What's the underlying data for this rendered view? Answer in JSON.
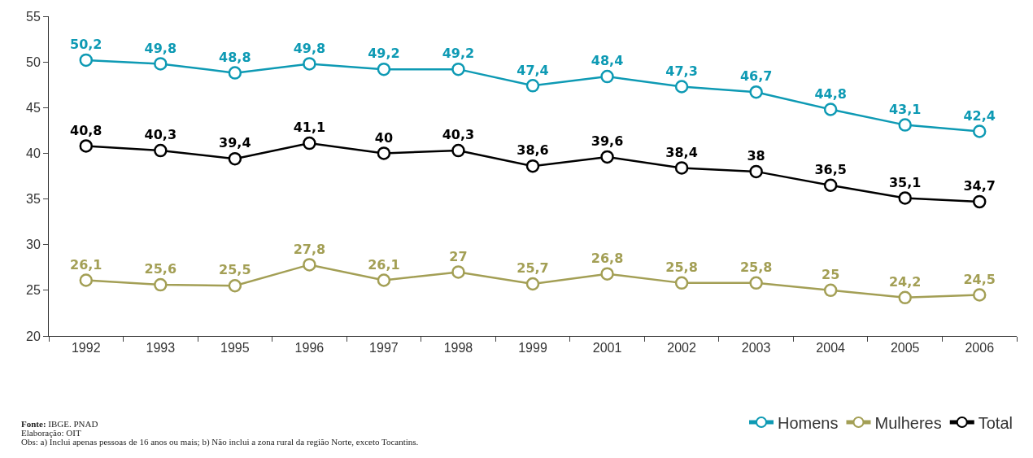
{
  "chart_data": {
    "type": "line",
    "categories": [
      "1992",
      "1993",
      "1995",
      "1996",
      "1997",
      "1998",
      "1999",
      "2001",
      "2002",
      "2003",
      "2004",
      "2005",
      "2006"
    ],
    "series": [
      {
        "name": "Homens",
        "color": "#0e9ab4",
        "values": [
          50.2,
          49.8,
          48.8,
          49.8,
          49.2,
          49.2,
          47.4,
          48.4,
          47.3,
          46.7,
          44.8,
          43.1,
          42.4
        ],
        "value_labels": [
          "50,2",
          "49,8",
          "48,8",
          "49,8",
          "49,2",
          "49,2",
          "47,4",
          "48,4",
          "47,3",
          "46,7",
          "44,8",
          "43,1",
          "42,4"
        ]
      },
      {
        "name": "Mulheres",
        "color": "#a39f55",
        "values": [
          26.1,
          25.6,
          25.5,
          27.8,
          26.1,
          27,
          25.7,
          26.8,
          25.8,
          25.8,
          25,
          24.2,
          24.5
        ],
        "value_labels": [
          "26,1",
          "25,6",
          "25,5",
          "27,8",
          "26,1",
          "27",
          "25,7",
          "26,8",
          "25,8",
          "25,8",
          "25",
          "24,2",
          "24,5"
        ]
      },
      {
        "name": "Total",
        "color": "#000000",
        "values": [
          40.8,
          40.3,
          39.4,
          41.1,
          40,
          40.3,
          38.6,
          39.6,
          38.4,
          38,
          36.5,
          35.1,
          34.7
        ],
        "value_labels": [
          "40,8",
          "40,3",
          "39,4",
          "41,1",
          "40",
          "40,3",
          "38,6",
          "39,6",
          "38,4",
          "38",
          "36,5",
          "35,1",
          "34,7"
        ]
      }
    ],
    "ylim": [
      20,
      55
    ],
    "yticks": [
      20,
      25,
      30,
      35,
      40,
      45,
      50,
      55
    ],
    "legend": "bottom right",
    "marker": "circle",
    "line_style": "solid",
    "annotations": [
      "Fonte: IBGE. PNAD",
      "Elaboração: OIT",
      "Obs: a) Inclui apenas pessoas de 16 anos ou mais; b) Não inclui a zona rural da região Norte, exceto Tocantins."
    ]
  }
}
